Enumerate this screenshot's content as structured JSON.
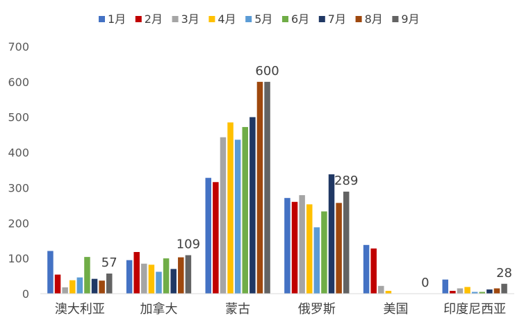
{
  "chart_data": {
    "type": "bar",
    "categories": [
      "澳大利亚",
      "加拿大",
      "蒙古",
      "俄罗斯",
      "美国",
      "印度尼西亚"
    ],
    "series": [
      {
        "name": "1月",
        "color": "#4472C4",
        "values": [
          121,
          95,
          328,
          271,
          138,
          40
        ]
      },
      {
        "name": "2月",
        "color": "#C00000",
        "values": [
          54,
          118,
          316,
          260,
          128,
          8
        ]
      },
      {
        "name": "3月",
        "color": "#A5A5A5",
        "values": [
          18,
          85,
          443,
          279,
          22,
          15
        ]
      },
      {
        "name": "4月",
        "color": "#FFC000",
        "values": [
          38,
          82,
          485,
          253,
          8,
          19
        ]
      },
      {
        "name": "5月",
        "color": "#5B9BD5",
        "values": [
          46,
          62,
          436,
          188,
          0,
          5
        ]
      },
      {
        "name": "6月",
        "color": "#70AD47",
        "values": [
          104,
          100,
          472,
          233,
          0,
          5
        ]
      },
      {
        "name": "7月",
        "color": "#203864",
        "values": [
          42,
          70,
          500,
          338,
          0,
          12
        ]
      },
      {
        "name": "8月",
        "color": "#9E480E",
        "values": [
          37,
          103,
          600,
          257,
          0,
          15
        ]
      },
      {
        "name": "9月",
        "color": "#636363",
        "values": [
          57,
          109,
          600,
          289,
          0,
          28
        ]
      }
    ],
    "data_labels": {
      "series": "9月",
      "values": [
        "57",
        "109",
        "600",
        "289",
        "0",
        "28"
      ]
    },
    "yticks": [
      "0",
      "100",
      "200",
      "300",
      "400",
      "500",
      "600",
      "700"
    ],
    "ylim": [
      0,
      700
    ],
    "title": "",
    "xlabel": "",
    "ylabel": "",
    "grid": false,
    "legend_position": "top"
  }
}
